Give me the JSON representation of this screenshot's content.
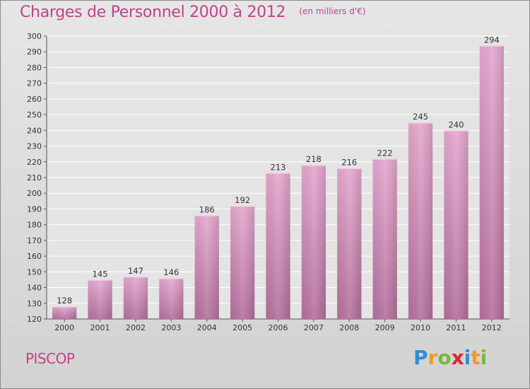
{
  "header": {
    "title": "Charges de Personnel 2000 à 2012",
    "subtitle": "(en milliers d'€)"
  },
  "footer": {
    "commune": "PISCOP",
    "logo": {
      "letters": [
        "P",
        "r",
        "o",
        "x",
        "i",
        "t",
        "i"
      ],
      "colors": [
        "#2d8fd4",
        "#f39a1e",
        "#7ab93a",
        "#e2232a",
        "#2d8fd4",
        "#f39a1e",
        "#7ab93a"
      ]
    }
  },
  "chart_data": {
    "type": "bar",
    "categories": [
      "2000",
      "2001",
      "2002",
      "2003",
      "2004",
      "2005",
      "2006",
      "2007",
      "2008",
      "2009",
      "2010",
      "2011",
      "2012"
    ],
    "values": [
      128,
      145,
      147,
      146,
      186,
      192,
      213,
      218,
      216,
      222,
      245,
      240,
      294
    ],
    "title": "Charges de Personnel 2000 à 2012",
    "subtitle": "(en milliers d'€)",
    "ylim": [
      120,
      300
    ],
    "yticks": [
      120,
      130,
      140,
      150,
      160,
      170,
      180,
      190,
      200,
      210,
      220,
      230,
      240,
      250,
      260,
      270,
      280,
      290,
      300
    ],
    "grid": true,
    "bar_color": "#d988b8",
    "title_color": "#c2428a"
  }
}
